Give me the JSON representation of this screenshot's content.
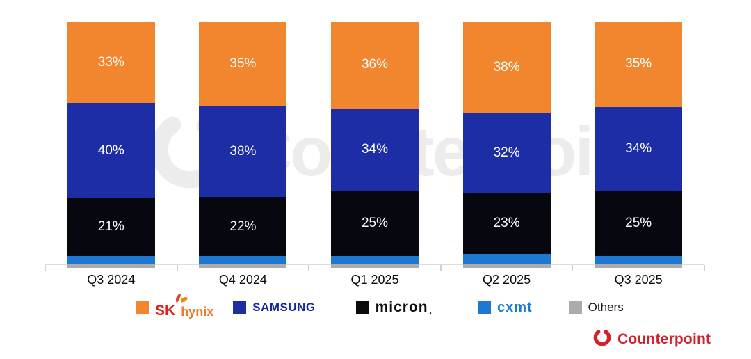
{
  "chart_data": {
    "type": "bar",
    "stacked": true,
    "title": "",
    "categories": [
      "Q3 2024",
      "Q4 2024",
      "Q1 2025",
      "Q2 2025",
      "Q3 2025"
    ],
    "series": [
      {
        "name": "SK hynix",
        "color": "#F2862F",
        "values": [
          33,
          35,
          36,
          38,
          35
        ],
        "labels_shown": true
      },
      {
        "name": "Samsung",
        "color": "#1C2DA6",
        "values": [
          40,
          38,
          34,
          32,
          34
        ],
        "labels_shown": true
      },
      {
        "name": "Micron",
        "color": "#06070F",
        "values": [
          21,
          22,
          25,
          23,
          25
        ],
        "labels_shown": true
      },
      {
        "name": "CXMT",
        "color": "#1E78D2",
        "values": [
          4,
          4,
          4,
          5,
          4
        ],
        "labels_shown": false
      },
      {
        "name": "Others",
        "color": "#ABABAB",
        "values": [
          2,
          2,
          2,
          2,
          2
        ],
        "labels_shown": false
      }
    ],
    "value_suffix": "%",
    "ylim": [
      0,
      100
    ],
    "grid": false,
    "legend_position": "bottom",
    "label_color": "#FFFFFF"
  },
  "legend": {
    "skhynix": {
      "sk": "SK",
      "hynix": "hynix"
    },
    "samsung": {
      "text": "SAMSUNG"
    },
    "micron": {
      "text": "micron",
      "dot": "."
    },
    "cxmt": {
      "text": "cxmt"
    },
    "others": {
      "text": "Others"
    }
  },
  "watermark": {
    "text": "Counterpoint"
  },
  "branding": {
    "name": "Counterpoint"
  },
  "colors": {
    "skhynix_swatch": "#F2862F",
    "samsung_swatch": "#1C2DA6",
    "micron_swatch": "#0A0A0A",
    "cxmt_swatch": "#1E78D2",
    "others_swatch": "#ABABAB",
    "sk_red": "#E2231A",
    "hynix_orange": "#F47725",
    "samsung_logo": "#1428A0",
    "cxmt_logo": "#1B7BD4",
    "counterpoint_red": "#D0232E"
  }
}
